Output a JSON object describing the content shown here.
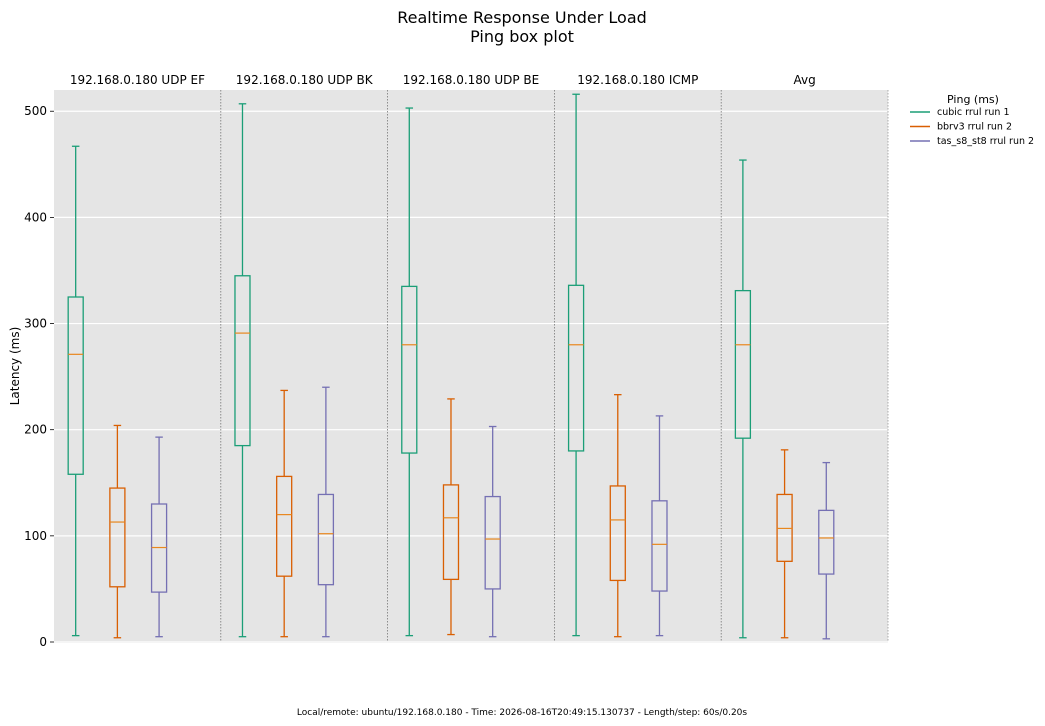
{
  "chart_data": {
    "type": "box",
    "title": "Realtime Response Under Load",
    "subtitle": "Ping box plot",
    "ylabel": "Latency (ms)",
    "ylim": [
      0,
      520
    ],
    "yticks": [
      0,
      100,
      200,
      300,
      400,
      500
    ],
    "grid": true,
    "legend": {
      "title": "Ping (ms)",
      "placement": "right",
      "entries": [
        "cubic rrul run 1",
        "bbrv3 rrul run 2",
        "tas_s8_st8 rrul run 2"
      ]
    },
    "series": [
      {
        "name": "cubic rrul run 1",
        "color": "#1b9e77"
      },
      {
        "name": "bbrv3 rrul run 2",
        "color": "#d95f02"
      },
      {
        "name": "tas_s8_st8 rrul run 2",
        "color": "#7570b3"
      }
    ],
    "panels": [
      {
        "title": "192.168.0.180 UDP EF",
        "boxes": [
          {
            "min": 6,
            "q1": 158,
            "median": 271,
            "q3": 325,
            "max": 467
          },
          {
            "min": 4,
            "q1": 52,
            "median": 113,
            "q3": 145,
            "max": 204
          },
          {
            "min": 5,
            "q1": 47,
            "median": 89,
            "q3": 130,
            "max": 193
          }
        ]
      },
      {
        "title": "192.168.0.180 UDP BK",
        "boxes": [
          {
            "min": 5,
            "q1": 185,
            "median": 291,
            "q3": 345,
            "max": 507
          },
          {
            "min": 5,
            "q1": 62,
            "median": 120,
            "q3": 156,
            "max": 237
          },
          {
            "min": 5,
            "q1": 54,
            "median": 102,
            "q3": 139,
            "max": 240
          }
        ]
      },
      {
        "title": "192.168.0.180 UDP BE",
        "boxes": [
          {
            "min": 6,
            "q1": 178,
            "median": 280,
            "q3": 335,
            "max": 503
          },
          {
            "min": 7,
            "q1": 59,
            "median": 117,
            "q3": 148,
            "max": 229
          },
          {
            "min": 5,
            "q1": 50,
            "median": 97,
            "q3": 137,
            "max": 203
          }
        ]
      },
      {
        "title": "192.168.0.180 ICMP",
        "boxes": [
          {
            "min": 6,
            "q1": 180,
            "median": 280,
            "q3": 336,
            "max": 516
          },
          {
            "min": 5,
            "q1": 58,
            "median": 115,
            "q3": 147,
            "max": 233
          },
          {
            "min": 6,
            "q1": 48,
            "median": 92,
            "q3": 133,
            "max": 213
          }
        ]
      },
      {
        "title": "Avg",
        "boxes": [
          {
            "min": 4,
            "q1": 192,
            "median": 280,
            "q3": 331,
            "max": 454
          },
          {
            "min": 4,
            "q1": 76,
            "median": 107,
            "q3": 139,
            "max": 181
          },
          {
            "min": 3,
            "q1": 64,
            "median": 98,
            "q3": 124,
            "max": 169
          }
        ]
      }
    ]
  },
  "footer": "Local/remote: ubuntu/192.168.0.180 - Time: 2026-08-16T20:49:15.130737 - Length/step: 60s/0.20s"
}
